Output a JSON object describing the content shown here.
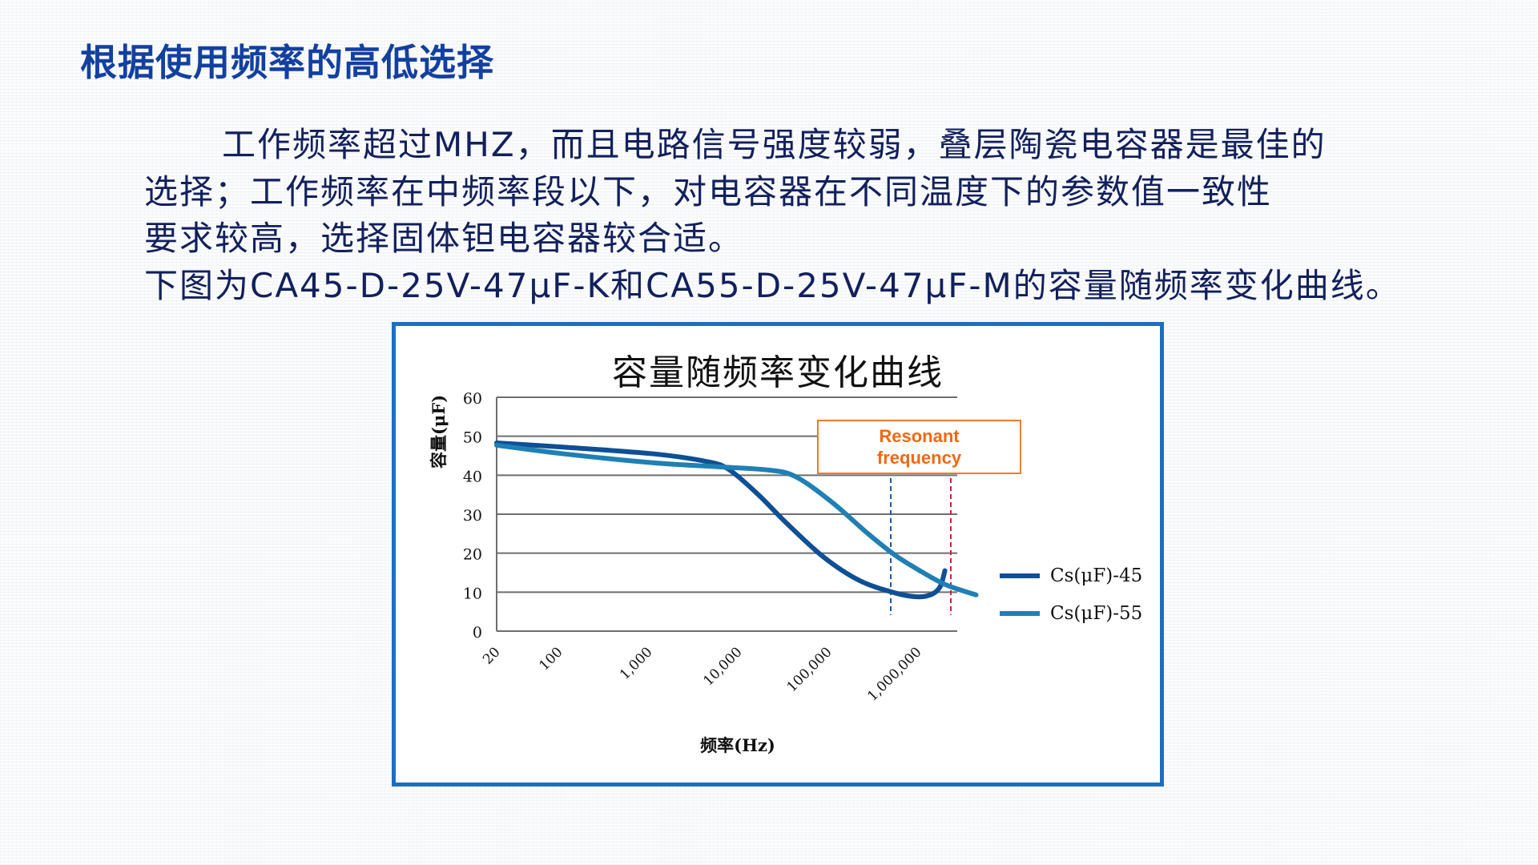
{
  "slide": {
    "title": "根据使用频率的高低选择",
    "paragraphs": [
      "工作频率超过MHZ，而且电路信号强度较弱，叠层陶瓷电容器是最佳的",
      "选择；工作频率在中频率段以下，对电容器在不同温度下的参数值一致性",
      "要求较高，选择固体钽电容器较合适。",
      "下图为CA45-D-25V-47μF-K和CA55-D-25V-47μF-M的容量随频率变化曲线。"
    ]
  },
  "colors": {
    "title": "#1340a0",
    "body_text": "#12205c",
    "frame_border": "#1b6ec2",
    "series_45": "#0e4f96",
    "series_55": "#1f80b4",
    "gridline": "#6e6e6e",
    "annotation": "#f0680f",
    "resonance_line_45": "#1c5aa0",
    "resonance_line_55": "#d0203c"
  },
  "chart_data": {
    "type": "line",
    "title": "容量随频率变化曲线",
    "xlabel": "频率(Hz)",
    "ylabel": "容量(μF)",
    "x_scale": "log",
    "x_ticks": [
      20,
      100,
      1000,
      10000,
      100000,
      1000000
    ],
    "x_tick_labels": [
      "20",
      "100",
      "1,000",
      "10,000",
      "100,000",
      "1,000,000"
    ],
    "ylim": [
      0,
      60
    ],
    "y_ticks": [
      0,
      10,
      20,
      30,
      40,
      50,
      60
    ],
    "grid": "horizontal",
    "legend_position": "right",
    "series": [
      {
        "name": "Cs(μF)-45",
        "points": [
          [
            20,
            48.3
          ],
          [
            100,
            47.2
          ],
          [
            1000,
            45.5
          ],
          [
            4000,
            43.5
          ],
          [
            7000,
            41.5
          ],
          [
            15000,
            35
          ],
          [
            30000,
            28
          ],
          [
            80000,
            19
          ],
          [
            200000,
            13
          ],
          [
            500000,
            9.8
          ],
          [
            900000,
            8.8
          ],
          [
            1300000,
            9.5
          ],
          [
            1600000,
            11.5
          ],
          [
            1800000,
            15.5
          ]
        ]
      },
      {
        "name": "Cs(μF)-55",
        "points": [
          [
            20,
            47.7
          ],
          [
            100,
            45.5
          ],
          [
            1000,
            43.2
          ],
          [
            5000,
            42.2
          ],
          [
            20000,
            41.3
          ],
          [
            40000,
            39.5
          ],
          [
            100000,
            33
          ],
          [
            250000,
            25
          ],
          [
            500000,
            19.5
          ],
          [
            900000,
            15.8
          ],
          [
            1800000,
            12
          ],
          [
            4000000,
            9.3
          ]
        ]
      }
    ],
    "annotations": [
      {
        "text": [
          "Resonant",
          "frequency"
        ],
        "type": "box"
      },
      {
        "type": "vline",
        "x": 900000,
        "series": "Cs(μF)-45",
        "style": "dashed"
      },
      {
        "type": "vline",
        "x": 4000000,
        "series": "Cs(μF)-55",
        "style": "dashed"
      }
    ]
  }
}
